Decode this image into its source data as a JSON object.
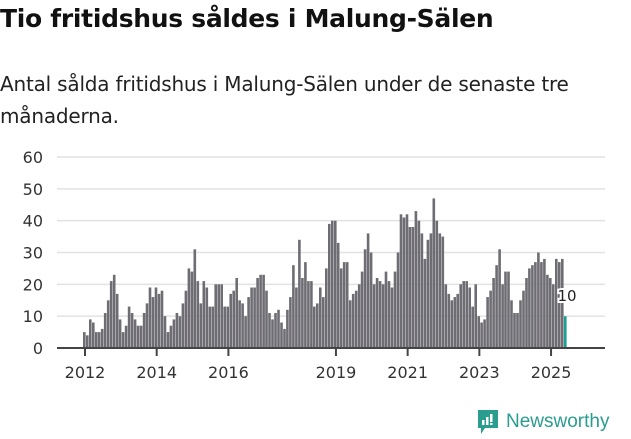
{
  "header": {
    "title": "Tio fritidshus såldes i Malung-Sälen",
    "subtitle": "Antal sålda fritidshus i Malung-Sälen under de senaste tre månaderna."
  },
  "brand": {
    "name": "Newsworthy",
    "color": "#2a9d8f"
  },
  "colors": {
    "bar": "#6e6d73",
    "highlight": "#1a9f94",
    "grid": "#e2e2e2",
    "axis": "#444444"
  },
  "chart_data": {
    "type": "bar",
    "title": "Tio fritidshus såldes i Malung-Sälen",
    "subtitle": "Antal sålda fritidshus i Malung-Sälen under de senaste tre månaderna.",
    "xlabel": "",
    "ylabel": "",
    "ylim": [
      0,
      60
    ],
    "yticks": [
      0,
      10,
      20,
      30,
      40,
      50,
      60
    ],
    "xticks": [
      "2012",
      "2014",
      "2016",
      "2019",
      "2021",
      "2023",
      "2025"
    ],
    "grid": true,
    "legend": null,
    "annotation": {
      "label": "10",
      "index": "last"
    },
    "start": "2012-01",
    "frequency": "monthly",
    "values": [
      5,
      4,
      9,
      8,
      5,
      5,
      6,
      11,
      15,
      21,
      23,
      17,
      9,
      5,
      7,
      13,
      11,
      9,
      7,
      7,
      11,
      14,
      19,
      16,
      19,
      17,
      18,
      10,
      5,
      7,
      9,
      11,
      10,
      14,
      18,
      25,
      24,
      31,
      21,
      14,
      21,
      19,
      13,
      13,
      20,
      20,
      20,
      13,
      13,
      17,
      18,
      22,
      15,
      14,
      10,
      16,
      19,
      19,
      22,
      23,
      23,
      18,
      11,
      9,
      11,
      12,
      8,
      6,
      12,
      16,
      26,
      19,
      34,
      22,
      27,
      21,
      21,
      13,
      14,
      19,
      16,
      25,
      39,
      40,
      40,
      33,
      25,
      27,
      27,
      15,
      17,
      18,
      20,
      24,
      31,
      36,
      30,
      20,
      22,
      21,
      20,
      24,
      21,
      19,
      24,
      30,
      42,
      41,
      42,
      38,
      38,
      43,
      40,
      36,
      28,
      34,
      36,
      47,
      40,
      36,
      35,
      20,
      17,
      15,
      16,
      17,
      20,
      21,
      21,
      19,
      13,
      20,
      10,
      8,
      9,
      16,
      18,
      22,
      26,
      31,
      20,
      24,
      24,
      15,
      11,
      11,
      15,
      18,
      22,
      25,
      26,
      27,
      30,
      27,
      28,
      23,
      22,
      20,
      28,
      27,
      28,
      10
    ]
  }
}
